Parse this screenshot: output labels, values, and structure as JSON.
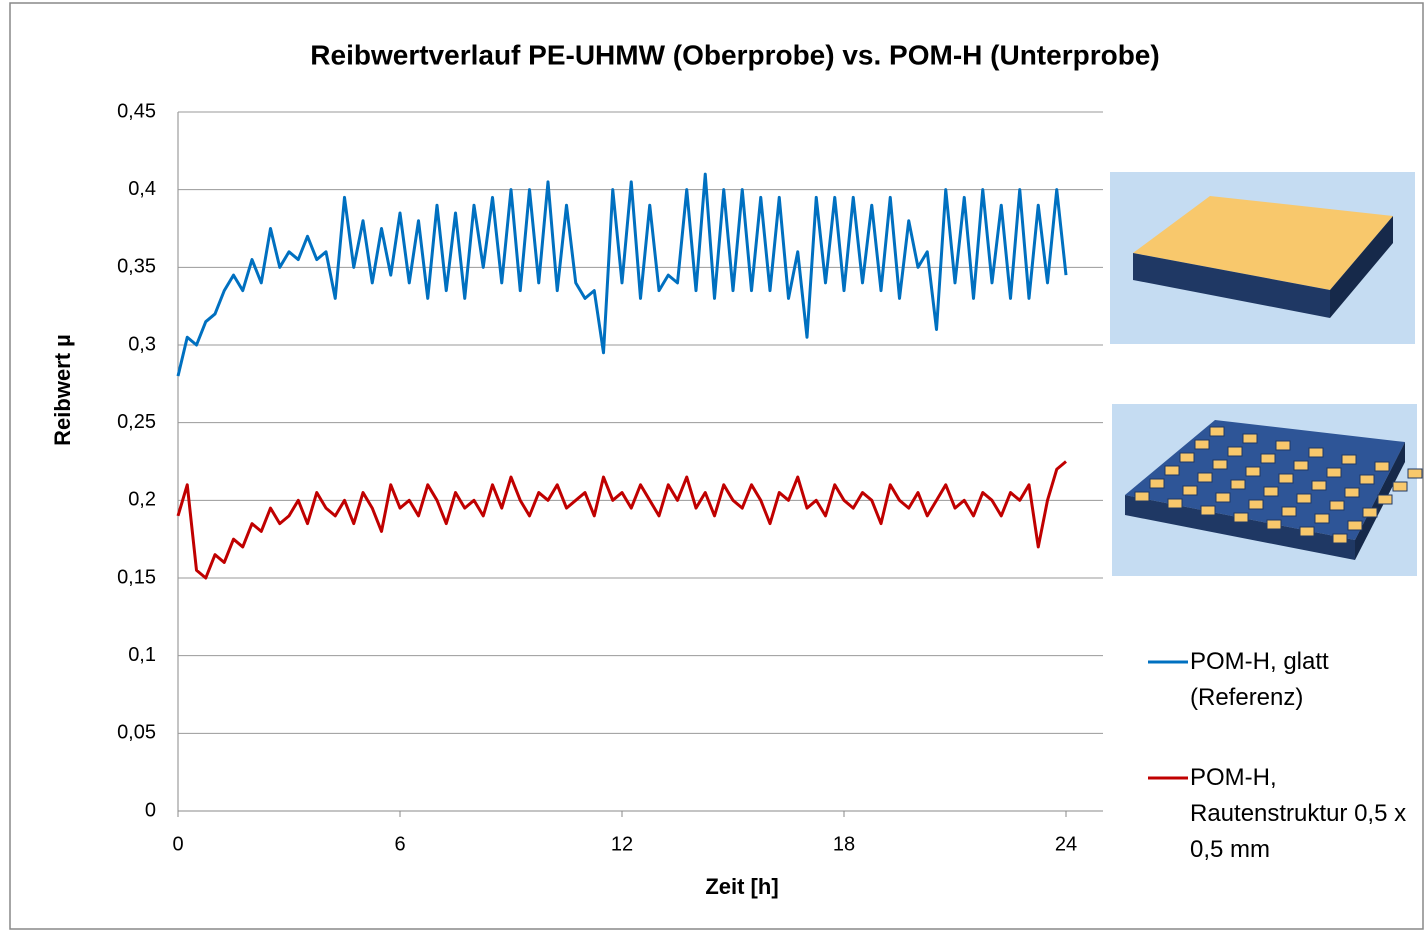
{
  "chart_data": {
    "type": "line",
    "title": "Reibwertverlauf PE-UHMW (Oberprobe) vs. POM-H (Unterprobe)",
    "x_label": "Zeit [h]",
    "y_label": "Reibwert  µ",
    "x": [
      0,
      0.25,
      0.5,
      0.75,
      1,
      1.25,
      1.5,
      1.75,
      2,
      2.25,
      2.5,
      2.75,
      3,
      3.25,
      3.5,
      3.75,
      4,
      4.25,
      4.5,
      4.75,
      5,
      5.25,
      5.5,
      5.75,
      6,
      6.25,
      6.5,
      6.75,
      7,
      7.25,
      7.5,
      7.75,
      8,
      8.25,
      8.5,
      8.75,
      9,
      9.25,
      9.5,
      9.75,
      10,
      10.25,
      10.5,
      10.75,
      11,
      11.25,
      11.5,
      11.75,
      12,
      12.25,
      12.5,
      12.75,
      13,
      13.25,
      13.5,
      13.75,
      14,
      14.25,
      14.5,
      14.75,
      15,
      15.25,
      15.5,
      15.75,
      16,
      16.25,
      16.5,
      16.75,
      17,
      17.25,
      17.5,
      17.75,
      18,
      18.25,
      18.5,
      18.75,
      19,
      19.25,
      19.5,
      19.75,
      20,
      20.25,
      20.5,
      20.75,
      21,
      21.25,
      21.5,
      21.75,
      22,
      22.25,
      22.5,
      22.75,
      23,
      23.25,
      23.5,
      23.75,
      24
    ],
    "series": [
      {
        "name": "POM-H, glatt (Referenz)",
        "color": "#0070c0",
        "values": [
          0.28,
          0.305,
          0.3,
          0.315,
          0.32,
          0.335,
          0.345,
          0.335,
          0.355,
          0.34,
          0.375,
          0.35,
          0.36,
          0.355,
          0.37,
          0.355,
          0.36,
          0.33,
          0.395,
          0.35,
          0.38,
          0.34,
          0.375,
          0.345,
          0.385,
          0.34,
          0.38,
          0.33,
          0.39,
          0.335,
          0.385,
          0.33,
          0.39,
          0.35,
          0.395,
          0.34,
          0.4,
          0.335,
          0.4,
          0.34,
          0.405,
          0.335,
          0.39,
          0.34,
          0.33,
          0.335,
          0.295,
          0.4,
          0.34,
          0.405,
          0.33,
          0.39,
          0.335,
          0.345,
          0.34,
          0.4,
          0.335,
          0.41,
          0.33,
          0.4,
          0.335,
          0.4,
          0.335,
          0.395,
          0.335,
          0.395,
          0.33,
          0.36,
          0.305,
          0.395,
          0.34,
          0.395,
          0.335,
          0.395,
          0.34,
          0.39,
          0.335,
          0.395,
          0.33,
          0.38,
          0.35,
          0.36,
          0.31,
          0.4,
          0.34,
          0.395,
          0.33,
          0.4,
          0.34,
          0.39,
          0.33,
          0.4,
          0.33,
          0.39,
          0.34,
          0.4,
          0.345
        ]
      },
      {
        "name": "POM-H, Rautenstruktur 0,5 x 0,5 mm",
        "color": "#c00000",
        "values": [
          0.19,
          0.21,
          0.155,
          0.15,
          0.165,
          0.16,
          0.175,
          0.17,
          0.185,
          0.18,
          0.195,
          0.185,
          0.19,
          0.2,
          0.185,
          0.205,
          0.195,
          0.19,
          0.2,
          0.185,
          0.205,
          0.195,
          0.18,
          0.21,
          0.195,
          0.2,
          0.19,
          0.21,
          0.2,
          0.185,
          0.205,
          0.195,
          0.2,
          0.19,
          0.21,
          0.195,
          0.215,
          0.2,
          0.19,
          0.205,
          0.2,
          0.21,
          0.195,
          0.2,
          0.205,
          0.19,
          0.215,
          0.2,
          0.205,
          0.195,
          0.21,
          0.2,
          0.19,
          0.21,
          0.2,
          0.215,
          0.195,
          0.205,
          0.19,
          0.21,
          0.2,
          0.195,
          0.21,
          0.2,
          0.185,
          0.205,
          0.2,
          0.215,
          0.195,
          0.2,
          0.19,
          0.21,
          0.2,
          0.195,
          0.205,
          0.2,
          0.185,
          0.21,
          0.2,
          0.195,
          0.205,
          0.19,
          0.2,
          0.21,
          0.195,
          0.2,
          0.19,
          0.205,
          0.2,
          0.19,
          0.205,
          0.2,
          0.21,
          0.17,
          0.2,
          0.22,
          0.225
        ]
      }
    ],
    "xlim": [
      0,
      25
    ],
    "xticks": [
      0,
      6,
      12,
      18,
      24
    ],
    "ylim": [
      0,
      0.45
    ],
    "yticks": [
      0,
      {
        "value": 0.05,
        "label": "0,05"
      },
      {
        "value": 0.1,
        "label": "0,1"
      },
      {
        "value": 0.15,
        "label": "0,15"
      },
      {
        "value": 0.2,
        "label": "0,2"
      },
      {
        "value": 0.25,
        "label": "0,25"
      },
      {
        "value": 0.3,
        "label": "0,3"
      },
      {
        "value": 0.35,
        "label": "0,35"
      },
      {
        "value": 0.4,
        "label": "0,4"
      },
      {
        "value": 0.45,
        "label": "0,45"
      }
    ],
    "grid": true,
    "legend": "right"
  }
}
